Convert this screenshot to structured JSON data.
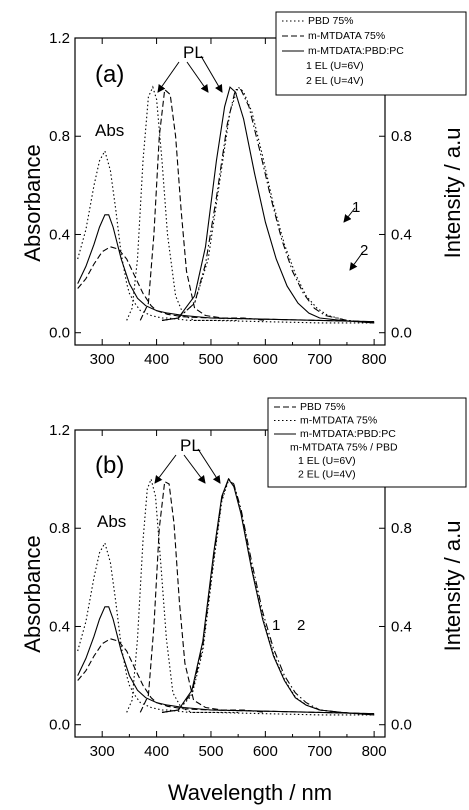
{
  "x_axis_label": "Wavelength / nm",
  "chart_data": [
    {
      "type": "line",
      "panel_label": "(a)",
      "xlim": [
        250,
        820
      ],
      "ylim": [
        -0.05,
        1.2
      ],
      "x_ticks": [
        "300",
        "400",
        "500",
        "600",
        "700",
        "800"
      ],
      "y_ticks": [
        "0.0",
        "0.4",
        "0.8",
        "1.2"
      ],
      "right_ticks": [
        "0.0",
        "0.4",
        "0.8"
      ],
      "ylabel": "Absorbance",
      "ylabel_right": "Intensity / a.u",
      "annotations": {
        "abs": "Abs",
        "pl": "PL",
        "curve1": "1",
        "curve2": "2"
      },
      "legend": [
        "PBD 75%",
        "m-MTDATA 75%",
        "m-MTDATA:PBD:PC",
        "1  EL (U=6V)",
        "2  EL (U=4V)"
      ],
      "series": [
        {
          "name": "PBD 75%",
          "dash": "dotted",
          "x": [
            255,
            270,
            285,
            295,
            305,
            315,
            325,
            335,
            345,
            350,
            360,
            370,
            380,
            390,
            400,
            410,
            420,
            440,
            460,
            500,
            600,
            700,
            800
          ],
          "y": [
            0.3,
            0.42,
            0.6,
            0.7,
            0.74,
            0.66,
            0.5,
            0.32,
            0.2,
            0.16,
            0.12,
            0.09,
            0.08,
            0.07,
            0.065,
            0.06,
            0.06,
            0.055,
            0.05,
            0.05,
            0.045,
            0.04,
            0.04
          ]
        },
        {
          "name": "m-MTDATA 75%",
          "dash": "dashed",
          "x": [
            255,
            270,
            285,
            300,
            315,
            330,
            345,
            360,
            375,
            390,
            400,
            420,
            450,
            500,
            600,
            700,
            800
          ],
          "y": [
            0.18,
            0.22,
            0.28,
            0.33,
            0.35,
            0.34,
            0.3,
            0.23,
            0.16,
            0.11,
            0.09,
            0.075,
            0.065,
            0.06,
            0.055,
            0.05,
            0.045
          ]
        },
        {
          "name": "m-MTDATA:PBD:PC",
          "dash": "solid",
          "x": [
            255,
            270,
            285,
            295,
            305,
            312,
            320,
            335,
            350,
            365,
            380,
            400,
            420,
            450,
            500,
            600,
            700,
            800
          ],
          "y": [
            0.2,
            0.27,
            0.36,
            0.43,
            0.48,
            0.48,
            0.43,
            0.3,
            0.2,
            0.14,
            0.11,
            0.09,
            0.08,
            0.07,
            0.06,
            0.055,
            0.05,
            0.045
          ]
        },
        {
          "name": "PL PBD",
          "dash": "dotted",
          "x": [
            345,
            355,
            365,
            375,
            385,
            393,
            400,
            410,
            420,
            435,
            450,
            470,
            500,
            550
          ],
          "y": [
            0.05,
            0.1,
            0.3,
            0.7,
            0.96,
            1.0,
            0.95,
            0.7,
            0.4,
            0.15,
            0.07,
            0.05,
            0.05,
            0.05
          ]
        },
        {
          "name": "PL m-MTDATA",
          "dash": "dashed",
          "x": [
            370,
            385,
            395,
            405,
            415,
            425,
            435,
            445,
            455,
            470,
            490,
            520,
            560,
            600
          ],
          "y": [
            0.05,
            0.12,
            0.4,
            0.8,
            0.99,
            0.97,
            0.8,
            0.5,
            0.25,
            0.1,
            0.07,
            0.06,
            0.06,
            0.05
          ]
        },
        {
          "name": "EL U=6V",
          "dash": "solid",
          "x": [
            410,
            440,
            470,
            490,
            510,
            525,
            535,
            545,
            560,
            580,
            600,
            620,
            640,
            660,
            680,
            700,
            740,
            800
          ],
          "y": [
            0.05,
            0.06,
            0.15,
            0.35,
            0.7,
            0.92,
            1.0,
            0.98,
            0.87,
            0.65,
            0.45,
            0.3,
            0.19,
            0.12,
            0.08,
            0.06,
            0.05,
            0.04
          ]
        },
        {
          "name": "EL U=4V",
          "dash": "dashdot",
          "x": [
            410,
            440,
            470,
            490,
            510,
            530,
            545,
            555,
            570,
            590,
            610,
            630,
            650,
            670,
            690,
            710,
            750,
            800
          ],
          "y": [
            0.05,
            0.06,
            0.12,
            0.28,
            0.55,
            0.85,
            0.99,
            0.99,
            0.92,
            0.74,
            0.55,
            0.38,
            0.25,
            0.16,
            0.1,
            0.07,
            0.05,
            0.04
          ]
        },
        {
          "name": "EL PBD",
          "dash": "dotted",
          "x": [
            410,
            440,
            470,
            495,
            515,
            535,
            550,
            560,
            575,
            595,
            615,
            635,
            655,
            675,
            695,
            715,
            750,
            800
          ],
          "y": [
            0.05,
            0.06,
            0.12,
            0.3,
            0.6,
            0.9,
            1.0,
            0.98,
            0.9,
            0.72,
            0.52,
            0.36,
            0.24,
            0.15,
            0.1,
            0.07,
            0.05,
            0.04
          ]
        }
      ]
    },
    {
      "type": "line",
      "panel_label": "(b)",
      "xlim": [
        250,
        820
      ],
      "ylim": [
        -0.05,
        1.2
      ],
      "x_ticks": [
        "300",
        "400",
        "500",
        "600",
        "700",
        "800"
      ],
      "y_ticks": [
        "0.0",
        "0.4",
        "0.8",
        "1.2"
      ],
      "right_ticks": [
        "0.0",
        "0.4",
        "0.8"
      ],
      "ylabel": "Absorbance",
      "ylabel_right": "Intensity / a.u",
      "annotations": {
        "abs": "Abs",
        "pl": "PL",
        "curve1": "1",
        "curve2": "2"
      },
      "legend": [
        "PBD 75%",
        "m-MTDATA 75%",
        "m-MTDATA:PBD:PC",
        "m-MTDATA 75% / PBD",
        "1  EL (U=6V)",
        "2  EL (U=4V)"
      ],
      "series": [
        {
          "name": "PBD 75%",
          "dash": "dotted",
          "x": [
            255,
            270,
            285,
            295,
            305,
            315,
            325,
            335,
            345,
            350,
            360,
            370,
            380,
            390,
            400,
            410,
            420,
            440,
            460,
            500,
            600,
            700,
            800
          ],
          "y": [
            0.3,
            0.42,
            0.6,
            0.7,
            0.74,
            0.66,
            0.5,
            0.32,
            0.2,
            0.16,
            0.12,
            0.09,
            0.08,
            0.07,
            0.065,
            0.06,
            0.06,
            0.055,
            0.05,
            0.05,
            0.045,
            0.04,
            0.04
          ]
        },
        {
          "name": "m-MTDATA 75%",
          "dash": "dashed",
          "x": [
            255,
            270,
            285,
            300,
            315,
            330,
            345,
            360,
            375,
            390,
            400,
            420,
            450,
            500,
            600,
            700,
            800
          ],
          "y": [
            0.18,
            0.22,
            0.28,
            0.33,
            0.35,
            0.34,
            0.3,
            0.23,
            0.16,
            0.11,
            0.09,
            0.075,
            0.065,
            0.06,
            0.055,
            0.05,
            0.045
          ]
        },
        {
          "name": "m-MTDATA:PBD:PC",
          "dash": "solid",
          "x": [
            255,
            270,
            285,
            295,
            305,
            312,
            320,
            335,
            350,
            365,
            380,
            400,
            420,
            450,
            500,
            600,
            700,
            800
          ],
          "y": [
            0.2,
            0.27,
            0.36,
            0.43,
            0.48,
            0.48,
            0.43,
            0.3,
            0.2,
            0.14,
            0.11,
            0.09,
            0.08,
            0.07,
            0.06,
            0.055,
            0.05,
            0.045
          ]
        },
        {
          "name": "PL PBD",
          "dash": "dotted",
          "x": [
            345,
            355,
            365,
            375,
            383,
            390,
            398,
            408,
            418,
            430,
            445,
            465,
            500,
            550
          ],
          "y": [
            0.05,
            0.1,
            0.35,
            0.75,
            0.96,
            1.0,
            0.93,
            0.65,
            0.35,
            0.13,
            0.07,
            0.05,
            0.05,
            0.05
          ]
        },
        {
          "name": "PL m-MTDATA",
          "dash": "dashed",
          "x": [
            370,
            385,
            395,
            405,
            415,
            423,
            432,
            442,
            452,
            468,
            490,
            520,
            560,
            600
          ],
          "y": [
            0.05,
            0.12,
            0.4,
            0.8,
            0.99,
            0.98,
            0.82,
            0.5,
            0.25,
            0.1,
            0.07,
            0.06,
            0.06,
            0.05
          ]
        },
        {
          "name": "EL U=6V",
          "dash": "solid",
          "x": [
            410,
            440,
            465,
            485,
            505,
            520,
            532,
            542,
            555,
            575,
            595,
            615,
            635,
            655,
            675,
            700,
            740,
            800
          ],
          "y": [
            0.05,
            0.06,
            0.14,
            0.34,
            0.7,
            0.93,
            1.0,
            0.97,
            0.86,
            0.63,
            0.43,
            0.28,
            0.18,
            0.11,
            0.08,
            0.06,
            0.05,
            0.04
          ]
        },
        {
          "name": "EL U=4V",
          "dash": "dashdot",
          "x": [
            410,
            440,
            465,
            485,
            505,
            520,
            532,
            542,
            555,
            575,
            595,
            615,
            635,
            655,
            675,
            700,
            740,
            800
          ],
          "y": [
            0.05,
            0.06,
            0.13,
            0.32,
            0.68,
            0.92,
            1.0,
            0.98,
            0.88,
            0.66,
            0.46,
            0.31,
            0.2,
            0.13,
            0.09,
            0.06,
            0.05,
            0.04
          ]
        },
        {
          "name": "EL m-MTDATA 75% / PBD",
          "dash": "dotted",
          "x": [
            410,
            440,
            465,
            485,
            505,
            520,
            533,
            543,
            556,
            576,
            596,
            616,
            636,
            656,
            676,
            700,
            740,
            800
          ],
          "y": [
            0.05,
            0.06,
            0.12,
            0.3,
            0.66,
            0.91,
            1.0,
            0.97,
            0.86,
            0.63,
            0.43,
            0.28,
            0.18,
            0.11,
            0.08,
            0.06,
            0.05,
            0.04
          ]
        }
      ]
    }
  ]
}
